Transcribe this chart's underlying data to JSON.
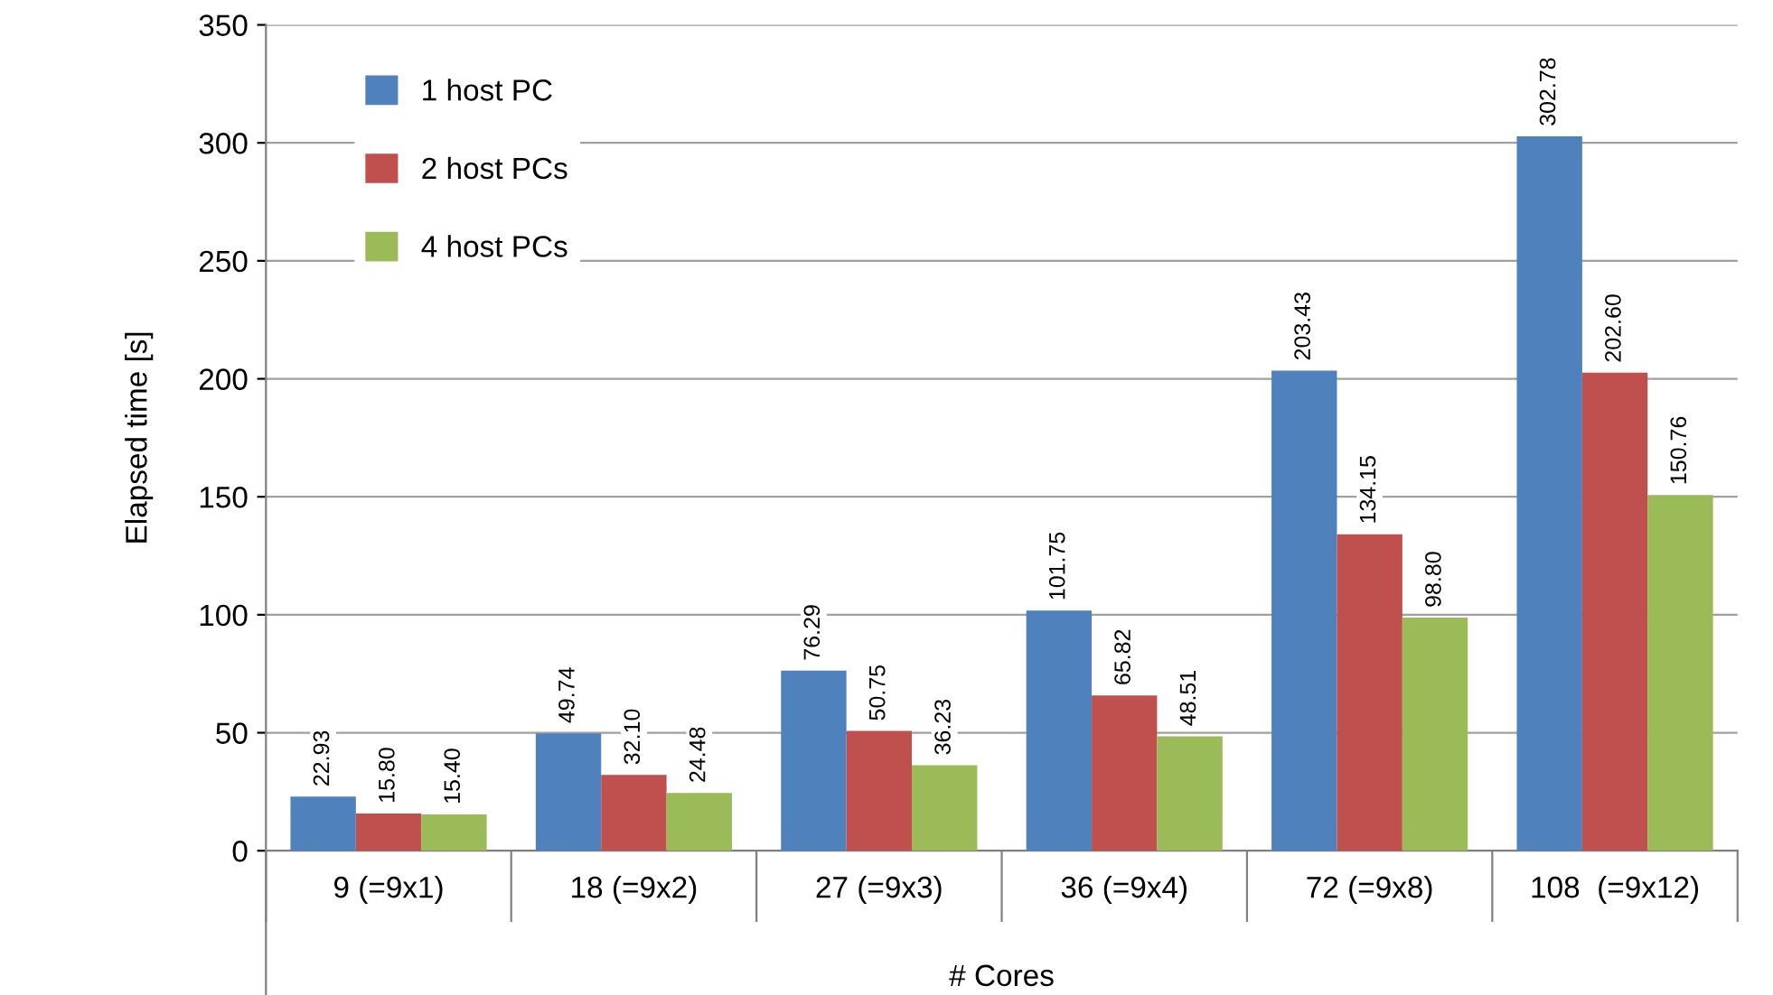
{
  "chart_data": {
    "type": "bar",
    "xlabel": "# Cores",
    "ylabel": "Elapsed time [s]",
    "categories": [
      "9 (=9x1)",
      "18 (=9x2)",
      "27 (=9x3)",
      "36 (=9x4)",
      "72 (=9x8)",
      "108  (=9x12)"
    ],
    "series": [
      {
        "name": "1 host PC",
        "color": "#4f81bd",
        "values": [
          22.93,
          49.74,
          76.29,
          101.75,
          203.43,
          302.78
        ],
        "value_labels": [
          "22.93",
          "49.74",
          "76.29",
          "101.75",
          "203.43",
          "302.78"
        ]
      },
      {
        "name": "2 host PCs",
        "color": "#c0504d",
        "values": [
          15.8,
          32.1,
          50.75,
          65.82,
          134.15,
          202.6
        ],
        "value_labels": [
          "15.80",
          "32.10",
          "50.75",
          "65.82",
          "134.15",
          "202.60"
        ]
      },
      {
        "name": "4 host PCs",
        "color": "#9bbb59",
        "values": [
          15.4,
          24.48,
          36.23,
          48.51,
          98.8,
          150.76
        ],
        "value_labels": [
          "15.40",
          "24.48",
          "36.23",
          "48.51",
          "98.80",
          "150.76"
        ]
      }
    ],
    "ylim": [
      0,
      350
    ],
    "yticks": [
      0,
      50,
      100,
      150,
      200,
      250,
      300,
      350
    ],
    "grid": "y",
    "legend": "top left"
  }
}
